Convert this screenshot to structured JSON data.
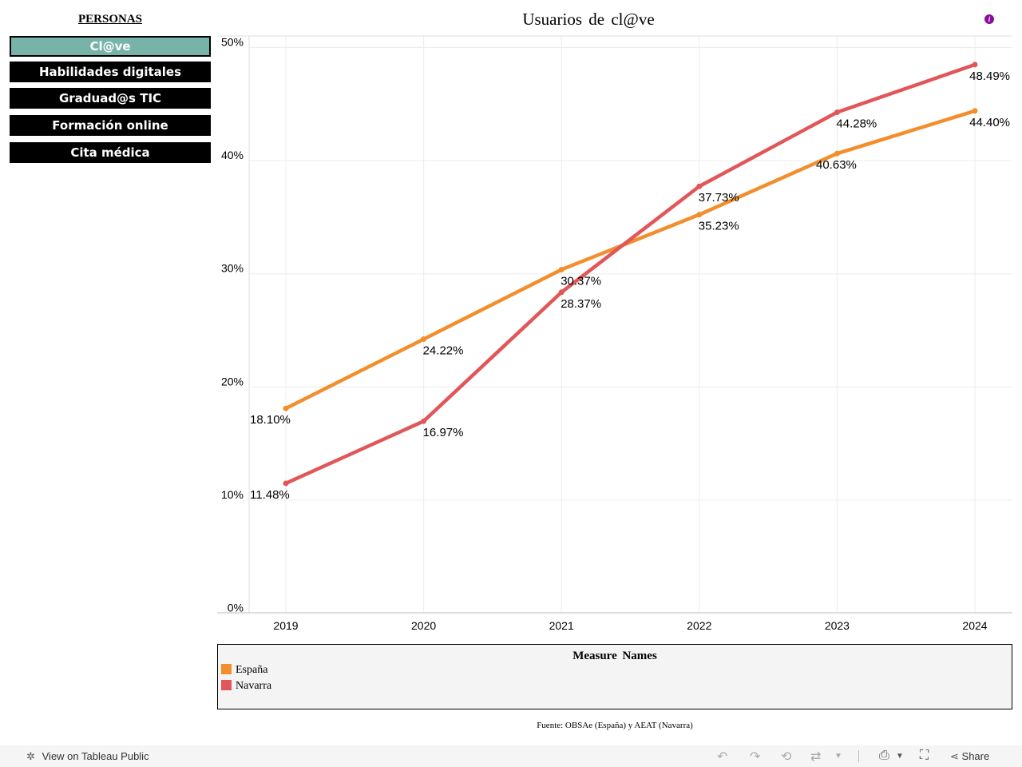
{
  "sidebar": {
    "title": "PERSONAS",
    "buttons": [
      {
        "label": "Cl@ve",
        "active": true
      },
      {
        "label": "Habilidades digitales",
        "active": false
      },
      {
        "label": "Graduad@s TIC",
        "active": false
      },
      {
        "label": "Formación online",
        "active": false
      },
      {
        "label": "Cita médica",
        "active": false
      }
    ]
  },
  "info_icon": "info-icon",
  "legend": {
    "title": "Measure  Names",
    "items": [
      {
        "label": "España",
        "color": "#f28e2b"
      },
      {
        "label": "Navarra",
        "color": "#e15759"
      }
    ]
  },
  "source": "Fuente: OBSAe (España) y AEAT (Navarra)",
  "toolbar": {
    "view_label": "View on Tableau Public",
    "share_label": "Share",
    "icons": [
      "undo-icon",
      "redo-icon",
      "revert-icon",
      "refresh-icon",
      "download-icon",
      "fullscreen-icon",
      "share-icon"
    ]
  },
  "chart_data": {
    "type": "line",
    "title": "Usuarios de cl@ve",
    "xlabel": "",
    "ylabel": "",
    "categories": [
      "2019",
      "2020",
      "2021",
      "2022",
      "2023",
      "2024"
    ],
    "y_ticks": [
      "0%",
      "10%",
      "20%",
      "30%",
      "40%",
      "50%"
    ],
    "ylim": [
      0,
      50
    ],
    "grid": true,
    "legend_position": "bottom",
    "series": [
      {
        "name": "España",
        "color": "#f28e2b",
        "values": [
          18.1,
          24.22,
          30.37,
          35.23,
          40.63,
          44.4
        ],
        "labels": [
          "18.10%",
          "24.22%",
          "30.37%",
          "35.23%",
          "40.63%",
          "44.40%"
        ]
      },
      {
        "name": "Navarra",
        "color": "#e15759",
        "values": [
          11.48,
          16.97,
          28.37,
          37.73,
          44.28,
          48.49
        ],
        "labels": [
          "11.48%",
          "16.97%",
          "28.37%",
          "37.73%",
          "44.28%",
          "48.49%"
        ]
      }
    ]
  }
}
